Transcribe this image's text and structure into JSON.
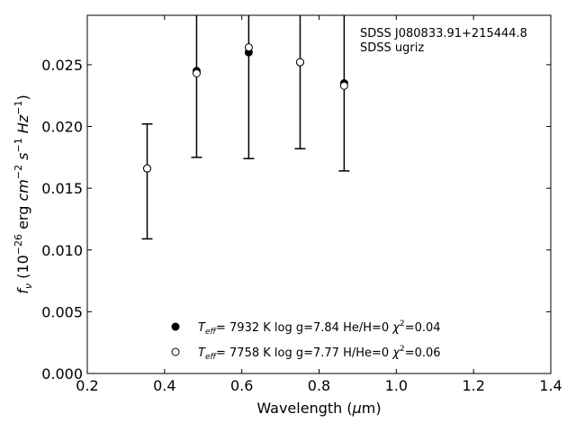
{
  "chart_data": {
    "type": "scatter",
    "xlabel_parts": [
      "Wavelength (",
      "μ",
      "m)"
    ],
    "ylabel_parts": {
      "f": "f",
      "nu": "ν",
      "open": " (10",
      "exp1": "−26",
      "erg": " erg ",
      "cm": "cm",
      "exp2": "−2",
      "s": " s",
      "exp3": "−1",
      "hz": " Hz",
      "exp4": "−1",
      "close": ")"
    },
    "xlim": [
      0.2,
      1.4
    ],
    "ylim": [
      0.0,
      0.029
    ],
    "xticks": [
      0.2,
      0.4,
      0.6,
      0.8,
      1.0,
      1.2,
      1.4
    ],
    "xtick_labels": [
      "0.2",
      "0.4",
      "0.6",
      "0.8",
      "1.0",
      "1.2",
      "1.4"
    ],
    "yticks": [
      0.0,
      0.005,
      0.01,
      0.015,
      0.02,
      0.025
    ],
    "ytick_labels": [
      "0.000",
      "0.005",
      "0.010",
      "0.015",
      "0.020",
      "0.025"
    ],
    "grid": false,
    "legend_position": "bottom-center",
    "annotations": [
      "SDSS J080833.91+215444.8",
      "SDSS ugriz"
    ],
    "observed": {
      "x": [
        0.355,
        0.483,
        0.618,
        0.751,
        0.865
      ],
      "y": [
        0.0166,
        0.0245,
        0.026,
        0.0252,
        0.0235
      ],
      "err_low": [
        0.0109,
        0.0175,
        0.0174,
        0.0182,
        0.0164
      ],
      "err_high": [
        0.0202,
        0.032,
        0.034,
        0.032,
        0.03
      ]
    },
    "series": [
      {
        "label": {
          "t": "T",
          "sub": "eff",
          "rest": "=  7932 K  log g=7.84  He/H=0  ",
          "chi": "χ",
          "sq": "2",
          "val": "=0.04"
        },
        "marker": "filled",
        "x": [
          0.355,
          0.483,
          0.618,
          0.751,
          0.865
        ],
        "y": [
          0.0166,
          0.0245,
          0.026,
          0.0252,
          0.0235
        ]
      },
      {
        "label": {
          "t": "T",
          "sub": "eff",
          "rest": "=  7758 K  log g=7.77  H/He=0  ",
          "chi": "χ",
          "sq": "2",
          "val": "=0.06"
        },
        "marker": "open",
        "x": [
          0.355,
          0.483,
          0.618,
          0.751,
          0.865
        ],
        "y": [
          0.0166,
          0.0243,
          0.0264,
          0.0252,
          0.0233
        ]
      }
    ]
  }
}
